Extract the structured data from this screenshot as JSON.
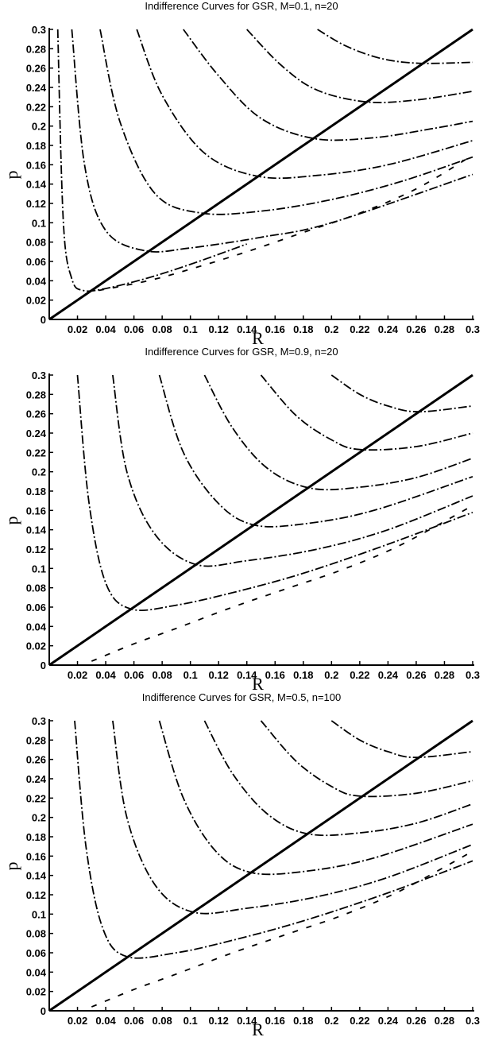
{
  "chart_data": [
    {
      "type": "line",
      "title": "Indifference Curves for GSR, M=0.1, n=20",
      "xlabel": "R",
      "ylabel": "p",
      "xlim": [
        0,
        0.3
      ],
      "ylim": [
        0,
        0.3
      ],
      "xticks": [
        "0.02",
        "0.04",
        "0.06",
        "0.08",
        "0.1",
        "0.12",
        "0.14",
        "0.16",
        "0.18",
        "0.2",
        "0.22",
        "0.24",
        "0.26",
        "0.28",
        "0.3"
      ],
      "yticks": [
        "0",
        "0.02",
        "0.04",
        "0.06",
        "0.08",
        "0.1",
        "0.12",
        "0.14",
        "0.16",
        "0.18",
        "0.2",
        "0.22",
        "0.24",
        "0.26",
        "0.28",
        "0.3"
      ],
      "grid": false,
      "diagonal": {
        "x": [
          0,
          0.3
        ],
        "y": [
          0,
          0.3
        ]
      },
      "series": [
        {
          "style": "dash-dot",
          "vertex": [
            0.024,
            0.03
          ],
          "x": [
            0.006,
            0.01,
            0.016,
            0.024,
            0.04,
            0.07,
            0.1,
            0.14
          ],
          "y": [
            0.3,
            0.1,
            0.042,
            0.03,
            0.032,
            0.043,
            0.057,
            0.078
          ]
        },
        {
          "style": "dash-dot",
          "vertex": [
            0.068,
            0.071
          ],
          "x": [
            0.016,
            0.025,
            0.04,
            0.068,
            0.1,
            0.15,
            0.2,
            0.3
          ],
          "y": [
            0.3,
            0.16,
            0.092,
            0.071,
            0.074,
            0.085,
            0.1,
            0.15
          ]
        },
        {
          "style": "dash-dot",
          "vertex": [
            0.108,
            0.11
          ],
          "x": [
            0.036,
            0.05,
            0.075,
            0.108,
            0.15,
            0.2,
            0.25,
            0.3
          ],
          "y": [
            0.3,
            0.205,
            0.13,
            0.11,
            0.112,
            0.124,
            0.143,
            0.168
          ]
        },
        {
          "style": "dash-dot",
          "vertex": [
            0.148,
            0.148
          ],
          "x": [
            0.062,
            0.08,
            0.11,
            0.148,
            0.19,
            0.24,
            0.3
          ],
          "y": [
            0.3,
            0.232,
            0.172,
            0.148,
            0.149,
            0.16,
            0.185
          ]
        },
        {
          "style": "dash-dot",
          "vertex": [
            0.188,
            0.187
          ],
          "x": [
            0.095,
            0.12,
            0.15,
            0.188,
            0.23,
            0.27,
            0.3
          ],
          "y": [
            0.3,
            0.252,
            0.208,
            0.187,
            0.188,
            0.197,
            0.205
          ]
        },
        {
          "style": "dash-dot",
          "vertex": [
            0.225,
            0.225
          ],
          "x": [
            0.14,
            0.165,
            0.19,
            0.225,
            0.26,
            0.3
          ],
          "y": [
            0.3,
            0.262,
            0.237,
            0.225,
            0.227,
            0.236
          ]
        },
        {
          "style": "dash-dot",
          "vertex": [
            0.262,
            0.265
          ],
          "x": [
            0.19,
            0.21,
            0.235,
            0.262,
            0.3
          ],
          "y": [
            0.3,
            0.283,
            0.27,
            0.265,
            0.266
          ]
        },
        {
          "style": "broken-dash",
          "x": [
            0.035,
            0.07,
            0.1,
            0.14,
            0.18,
            0.22,
            0.26,
            0.3
          ],
          "y": [
            0.03,
            0.04,
            0.052,
            0.07,
            0.09,
            0.11,
            0.135,
            0.17
          ]
        }
      ]
    },
    {
      "type": "line",
      "title": "Indifference Curves for GSR, M=0.9, n=20",
      "xlabel": "R",
      "ylabel": "p",
      "xlim": [
        0,
        0.3
      ],
      "ylim": [
        0,
        0.3
      ],
      "xticks": [
        "0.02",
        "0.04",
        "0.06",
        "0.08",
        "0.1",
        "0.12",
        "0.14",
        "0.16",
        "0.18",
        "0.2",
        "0.22",
        "0.24",
        "0.26",
        "0.28",
        "0.3"
      ],
      "yticks": [
        "0",
        "0.02",
        "0.04",
        "0.06",
        "0.08",
        "0.1",
        "0.12",
        "0.14",
        "0.16",
        "0.18",
        "0.2",
        "0.22",
        "0.24",
        "0.26",
        "0.28",
        "0.3"
      ],
      "grid": false,
      "diagonal": {
        "x": [
          0,
          0.3
        ],
        "y": [
          0,
          0.3
        ]
      },
      "series": [
        {
          "style": "dash-dot",
          "vertex": [
            0.058,
            0.058
          ],
          "x": [
            0.02,
            0.028,
            0.04,
            0.058,
            0.09,
            0.13,
            0.18,
            0.24,
            0.3
          ],
          "y": [
            0.3,
            0.17,
            0.085,
            0.058,
            0.062,
            0.075,
            0.095,
            0.125,
            0.158
          ]
        },
        {
          "style": "dash-dot",
          "vertex": [
            0.104,
            0.104
          ],
          "x": [
            0.045,
            0.055,
            0.075,
            0.104,
            0.14,
            0.19,
            0.24,
            0.3
          ],
          "y": [
            0.3,
            0.2,
            0.135,
            0.104,
            0.108,
            0.12,
            0.14,
            0.175
          ]
        },
        {
          "style": "dash-dot",
          "vertex": [
            0.145,
            0.145
          ],
          "x": [
            0.078,
            0.095,
            0.12,
            0.145,
            0.18,
            0.23,
            0.3
          ],
          "y": [
            0.3,
            0.22,
            0.167,
            0.145,
            0.146,
            0.16,
            0.195
          ]
        },
        {
          "style": "dash-dot",
          "vertex": [
            0.185,
            0.183
          ],
          "x": [
            0.11,
            0.13,
            0.155,
            0.185,
            0.22,
            0.26,
            0.3
          ],
          "y": [
            0.3,
            0.245,
            0.203,
            0.183,
            0.184,
            0.194,
            0.214
          ]
        },
        {
          "style": "dash-dot",
          "vertex": [
            0.22,
            0.223
          ],
          "x": [
            0.15,
            0.175,
            0.2,
            0.22,
            0.26,
            0.3
          ],
          "y": [
            0.3,
            0.258,
            0.233,
            0.223,
            0.226,
            0.24
          ]
        },
        {
          "style": "dash-dot",
          "vertex": [
            0.262,
            0.262
          ],
          "x": [
            0.2,
            0.22,
            0.24,
            0.262,
            0.3
          ],
          "y": [
            0.3,
            0.28,
            0.268,
            0.262,
            0.268
          ]
        },
        {
          "style": "broken-dash",
          "x": [
            0.03,
            0.06,
            0.09,
            0.13,
            0.17,
            0.21,
            0.25,
            0.3
          ],
          "y": [
            0.004,
            0.022,
            0.038,
            0.06,
            0.08,
            0.1,
            0.125,
            0.165
          ]
        }
      ]
    },
    {
      "type": "line",
      "title": "Indifference Curves for GSR, M=0.5, n=100",
      "xlabel": "R",
      "ylabel": "p",
      "xlim": [
        0,
        0.3
      ],
      "ylim": [
        0,
        0.3
      ],
      "xticks": [
        "0.02",
        "0.04",
        "0.06",
        "0.08",
        "0.1",
        "0.12",
        "0.14",
        "0.16",
        "0.18",
        "0.2",
        "0.22",
        "0.24",
        "0.26",
        "0.28",
        "0.3"
      ],
      "yticks": [
        "0",
        "0.02",
        "0.04",
        "0.06",
        "0.08",
        "0.1",
        "0.12",
        "0.14",
        "0.16",
        "0.18",
        "0.2",
        "0.22",
        "0.24",
        "0.26",
        "0.28",
        "0.3"
      ],
      "grid": false,
      "diagonal": {
        "x": [
          0,
          0.3
        ],
        "y": [
          0,
          0.3
        ]
      },
      "series": [
        {
          "style": "dash-dot",
          "vertex": [
            0.055,
            0.056
          ],
          "x": [
            0.018,
            0.026,
            0.038,
            0.055,
            0.09,
            0.13,
            0.18,
            0.24,
            0.3
          ],
          "y": [
            0.3,
            0.17,
            0.085,
            0.056,
            0.06,
            0.073,
            0.093,
            0.122,
            0.155
          ]
        },
        {
          "style": "dash-dot",
          "vertex": [
            0.102,
            0.102
          ],
          "x": [
            0.045,
            0.055,
            0.075,
            0.102,
            0.14,
            0.19,
            0.24,
            0.3
          ],
          "y": [
            0.3,
            0.2,
            0.13,
            0.102,
            0.106,
            0.118,
            0.138,
            0.172
          ]
        },
        {
          "style": "dash-dot",
          "vertex": [
            0.143,
            0.143
          ],
          "x": [
            0.078,
            0.095,
            0.118,
            0.143,
            0.18,
            0.23,
            0.3
          ],
          "y": [
            0.3,
            0.22,
            0.165,
            0.143,
            0.144,
            0.158,
            0.193
          ]
        },
        {
          "style": "dash-dot",
          "vertex": [
            0.183,
            0.183
          ],
          "x": [
            0.11,
            0.13,
            0.155,
            0.183,
            0.22,
            0.26,
            0.3
          ],
          "y": [
            0.3,
            0.245,
            0.203,
            0.183,
            0.184,
            0.194,
            0.214
          ]
        },
        {
          "style": "dash-dot",
          "vertex": [
            0.22,
            0.222
          ],
          "x": [
            0.15,
            0.175,
            0.2,
            0.22,
            0.26,
            0.3
          ],
          "y": [
            0.3,
            0.258,
            0.232,
            0.222,
            0.225,
            0.238
          ]
        },
        {
          "style": "dash-dot",
          "vertex": [
            0.26,
            0.262
          ],
          "x": [
            0.2,
            0.22,
            0.24,
            0.26,
            0.3
          ],
          "y": [
            0.3,
            0.28,
            0.268,
            0.262,
            0.268
          ]
        },
        {
          "style": "broken-dash",
          "x": [
            0.03,
            0.06,
            0.09,
            0.13,
            0.17,
            0.21,
            0.25,
            0.3
          ],
          "y": [
            0.004,
            0.022,
            0.038,
            0.06,
            0.08,
            0.1,
            0.125,
            0.165
          ]
        }
      ]
    }
  ]
}
